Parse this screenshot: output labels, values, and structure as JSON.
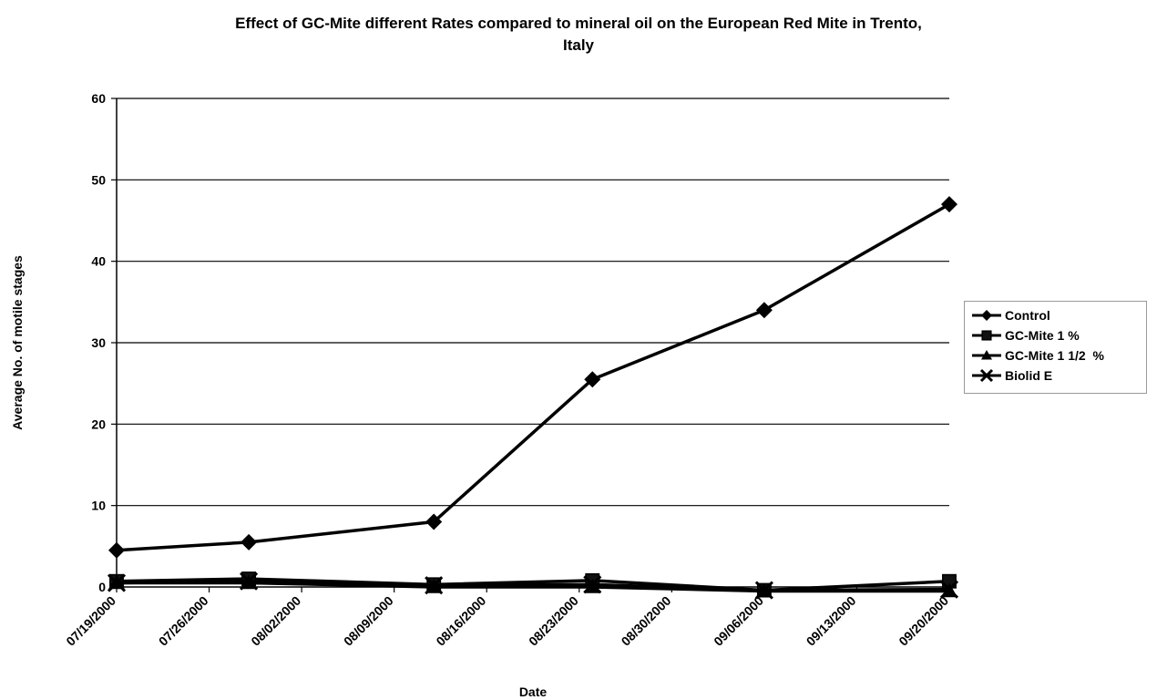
{
  "title": {
    "line1": "Effect of GC-Mite different Rates compared to mineral oil on the European Red Mite in Trento,",
    "line2": "Italy"
  },
  "chart_data": {
    "type": "line",
    "title": "Effect of GC-Mite different Rates compared to mineral oil on the European Red Mite in Trento, Italy",
    "xlabel": "Date",
    "ylabel": "Average No. of motile stages",
    "categories": [
      "07/19/2000",
      "07/26/2000",
      "08/02/2000",
      "08/09/2000",
      "08/16/2000",
      "08/23/2000",
      "08/30/2000",
      "09/06/2000",
      "09/13/2000",
      "09/20/2000"
    ],
    "ylim": [
      0,
      60
    ],
    "yticks": [
      0,
      10,
      20,
      30,
      40,
      50,
      60
    ],
    "grid": "horizontal",
    "legend_position": "right",
    "series": [
      {
        "name": "Control",
        "marker": "diamond",
        "x": [
          "07/19/2000",
          "07/29/2000",
          "08/12/2000",
          "08/24/2000",
          "09/06/2000",
          "09/20/2000"
        ],
        "y": [
          4.5,
          5.5,
          8,
          25.5,
          34,
          47
        ]
      },
      {
        "name": "GC-Mite 1 %",
        "marker": "square",
        "x": [
          "07/19/2000",
          "07/29/2000",
          "08/12/2000",
          "08/24/2000",
          "09/06/2000",
          "09/20/2000"
        ],
        "y": [
          0.7,
          1.0,
          0.3,
          0.8,
          -0.4,
          0.7
        ]
      },
      {
        "name": "GC-Mite 1 1/2  %",
        "marker": "triangle",
        "x": [
          "07/19/2000",
          "07/29/2000",
          "08/12/2000",
          "08/24/2000",
          "09/06/2000",
          "09/20/2000"
        ],
        "y": [
          0.5,
          0.5,
          0.0,
          0.0,
          -0.5,
          -0.5
        ]
      },
      {
        "name": "Biolid E",
        "marker": "x",
        "x": [
          "07/19/2000",
          "07/29/2000",
          "08/12/2000",
          "08/24/2000",
          "09/06/2000",
          "09/20/2000"
        ],
        "y": [
          0.5,
          0.7,
          0.2,
          0.3,
          -0.4,
          -0.3
        ]
      }
    ]
  }
}
